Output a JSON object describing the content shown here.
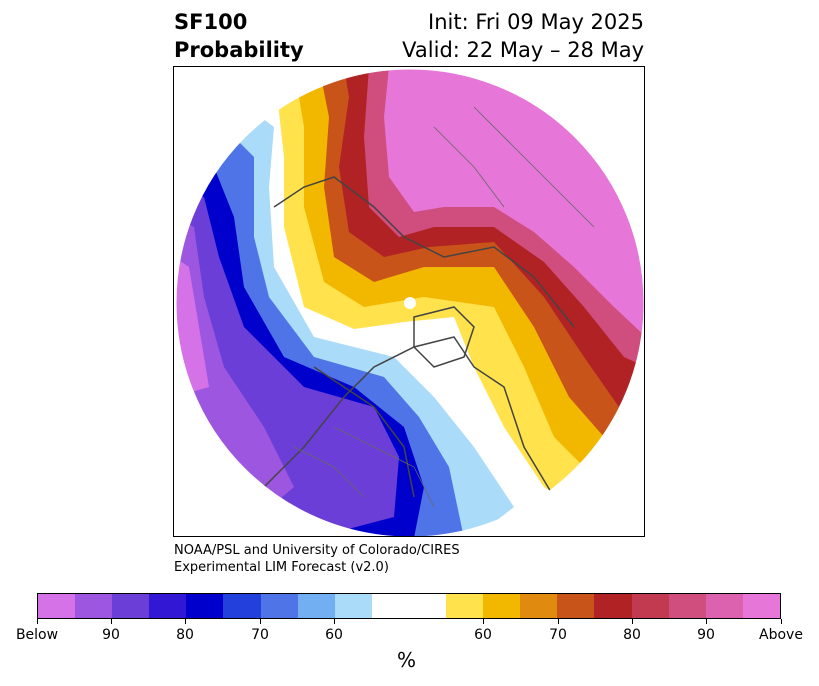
{
  "header": {
    "title_line1": "SF100",
    "title_line2": "Probability",
    "init": "Init: Fri 09 May 2025",
    "valid": "Valid: 22 May – 28 May"
  },
  "credit": {
    "line1": "NOAA/PSL and University of Colorado/CIRES",
    "line2": "Experimental LIM Forecast (v2.0)"
  },
  "colorbar": {
    "colors": [
      "#d672e8",
      "#9d56e0",
      "#6b3ed8",
      "#3218d4",
      "#0000cc",
      "#2440dc",
      "#4f74e8",
      "#72aef2",
      "#aadcfa",
      "#ffffff",
      "#ffffff",
      "#ffe24c",
      "#f2b800",
      "#e08a10",
      "#c8541a",
      "#b12224",
      "#c23a50",
      "#cf4e7e",
      "#dc62b0",
      "#e676d8"
    ],
    "tick_labels": [
      "Below",
      "90",
      "80",
      "70",
      "60",
      "60",
      "70",
      "80",
      "90",
      "Above"
    ],
    "unit": "%"
  },
  "legend_terms": {
    "below": "Below",
    "above": "Above"
  },
  "map": {
    "projection": "north polar stereographic",
    "fill_regions": [
      {
        "region": "northern Eurasia / Arctic",
        "category": "Above"
      },
      {
        "region": "Alaska / western Canada",
        "category": "Below"
      },
      {
        "region": "western and central United States",
        "category": "Below"
      },
      {
        "region": "eastern Canada / Greenland",
        "category": "Above"
      },
      {
        "region": "north Pacific",
        "category": "Below"
      }
    ]
  }
}
